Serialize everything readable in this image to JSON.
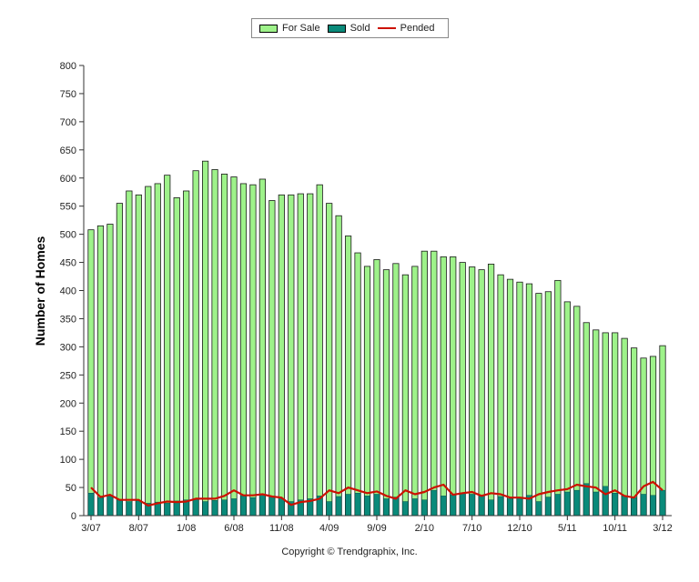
{
  "legend": [
    {
      "label": "For Sale",
      "kind": "bar",
      "color": "#9ef28a"
    },
    {
      "label": "Sold",
      "kind": "bar",
      "color": "#0a8a7a"
    },
    {
      "label": "Pended",
      "kind": "line",
      "color": "#cc1100"
    }
  ],
  "copyright": "Copyright © Trendgraphix, Inc.",
  "chart_data": {
    "type": "bar",
    "title": "",
    "xlabel": "",
    "ylabel": "Number of Homes",
    "ylim": [
      0,
      800
    ],
    "yticks": [
      0,
      50,
      100,
      150,
      200,
      250,
      300,
      350,
      400,
      450,
      500,
      550,
      600,
      650,
      700,
      750,
      800
    ],
    "xtick_labels": [
      "3/07",
      "8/07",
      "1/08",
      "6/08",
      "11/08",
      "4/09",
      "9/09",
      "2/10",
      "7/10",
      "12/10",
      "5/11",
      "10/11",
      "3/12"
    ],
    "categories": [
      "3/07",
      "4/07",
      "5/07",
      "6/07",
      "7/07",
      "8/07",
      "9/07",
      "10/07",
      "11/07",
      "12/07",
      "1/08",
      "2/08",
      "3/08",
      "4/08",
      "5/08",
      "6/08",
      "7/08",
      "8/08",
      "9/08",
      "10/08",
      "11/08",
      "12/08",
      "1/09",
      "2/09",
      "3/09",
      "4/09",
      "5/09",
      "6/09",
      "7/09",
      "8/09",
      "9/09",
      "10/09",
      "11/09",
      "12/09",
      "1/10",
      "2/10",
      "3/10",
      "4/10",
      "5/10",
      "6/10",
      "7/10",
      "8/10",
      "9/10",
      "10/10",
      "11/10",
      "12/10",
      "1/11",
      "2/11",
      "3/11",
      "4/11",
      "5/11",
      "6/11",
      "7/11",
      "8/11",
      "9/11",
      "10/11",
      "11/11",
      "12/11",
      "1/12",
      "2/12",
      "3/12"
    ],
    "legend_position": "top-center",
    "grid": false,
    "series": [
      {
        "name": "For Sale",
        "type": "bar",
        "color": "#9ef28a",
        "values": [
          508,
          515,
          518,
          555,
          577,
          570,
          585,
          590,
          605,
          565,
          577,
          613,
          630,
          615,
          607,
          602,
          590,
          588,
          598,
          560,
          570,
          570,
          572,
          572,
          588,
          555,
          533,
          497,
          467,
          443,
          455,
          437,
          448,
          428,
          443,
          470,
          470,
          460,
          460,
          450,
          442,
          437,
          447,
          428,
          420,
          415,
          412,
          395,
          398,
          418,
          380,
          372,
          343,
          330,
          325,
          325,
          315,
          298,
          280,
          283,
          302
        ]
      },
      {
        "name": "Sold",
        "type": "bar",
        "color": "#0a8a7a",
        "values": [
          40,
          32,
          35,
          28,
          25,
          27,
          22,
          24,
          22,
          26,
          28,
          30,
          25,
          27,
          28,
          30,
          35,
          32,
          38,
          34,
          30,
          25,
          28,
          30,
          35,
          25,
          34,
          38,
          40,
          35,
          38,
          30,
          33,
          25,
          30,
          28,
          45,
          35,
          37,
          40,
          38,
          35,
          28,
          34,
          30,
          32,
          36,
          25,
          33,
          38,
          42,
          45,
          57,
          42,
          52,
          40,
          35,
          32,
          38,
          36,
          45
        ]
      },
      {
        "name": "Pended",
        "type": "line",
        "color": "#cc1100",
        "values": [
          50,
          33,
          37,
          28,
          28,
          28,
          18,
          22,
          25,
          24,
          25,
          30,
          30,
          30,
          35,
          45,
          36,
          36,
          38,
          34,
          32,
          19,
          24,
          26,
          30,
          45,
          40,
          50,
          45,
          40,
          43,
          35,
          30,
          45,
          38,
          42,
          50,
          55,
          37,
          40,
          42,
          35,
          40,
          38,
          32,
          32,
          30,
          38,
          42,
          45,
          47,
          55,
          52,
          50,
          38,
          45,
          35,
          32,
          52,
          60,
          45
        ]
      }
    ]
  }
}
